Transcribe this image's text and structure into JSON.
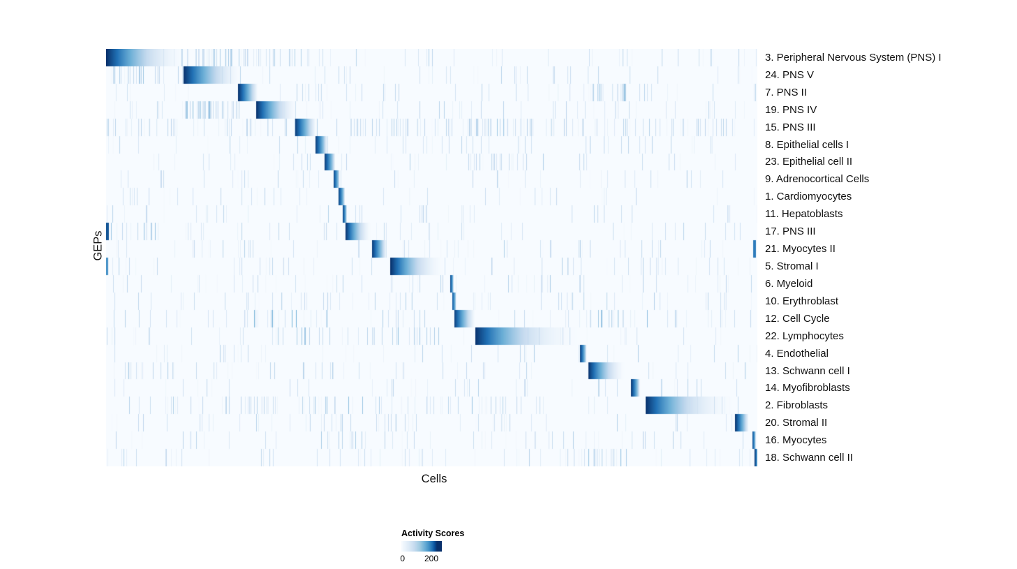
{
  "chart_data": {
    "type": "heatmap",
    "title": "",
    "xlabel": "Cells",
    "ylabel": "GEPs",
    "grid": false,
    "colormap": "Blues",
    "colormap_stops": [
      "#f7fbff",
      "#c6dbef",
      "#6baed6",
      "#2171b5",
      "#08306b"
    ],
    "legend": {
      "title": "Activity Scores",
      "tick_labels": [
        "0",
        "200"
      ],
      "position": "bottom-center"
    },
    "n_rows": 24,
    "x_axis_tick_labels": [],
    "background_noise": {
      "density": 0.05,
      "max_intensity": 0.3
    },
    "rows": [
      {
        "label": "3. Peripheral Nervous System (PNS) I",
        "block": [
          0.0,
          0.125
        ],
        "peak": 1.0,
        "fade": 2.0,
        "noise_regions": [
          [
            0.125,
            0.33,
            0.22,
            0.35
          ]
        ]
      },
      {
        "label": "24. PNS V",
        "block": [
          0.118,
          0.206
        ],
        "peak": 1.0,
        "fade": 1.6,
        "noise_regions": [
          [
            0.0,
            0.06,
            0.18,
            0.4
          ]
        ]
      },
      {
        "label": "7. PNS II",
        "block": [
          0.202,
          0.232
        ],
        "peak": 1.0,
        "fade": 1.0,
        "noise_regions": [
          [
            0.73,
            0.8,
            0.3,
            0.45
          ]
        ]
      },
      {
        "label": "19. PNS IV",
        "block": [
          0.23,
          0.292
        ],
        "peak": 1.0,
        "fade": 1.6,
        "noise_regions": [
          [
            0.12,
            0.205,
            0.28,
            0.5
          ]
        ]
      },
      {
        "label": "15. PNS III",
        "block": [
          0.29,
          0.321
        ],
        "peak": 0.95,
        "fade": 1.0,
        "noise_regions": [
          [
            0.0,
            1.0,
            0.1,
            0.3
          ],
          [
            0.55,
            0.66,
            0.18,
            0.35
          ]
        ]
      },
      {
        "label": "8. Epithelial cells I",
        "block": [
          0.321,
          0.338
        ],
        "peak": 0.95,
        "fade": 0.7,
        "noise_regions": []
      },
      {
        "label": "23. Epithelial cell II",
        "block": [
          0.335,
          0.351
        ],
        "peak": 0.95,
        "fade": 0.7,
        "noise_regions": [
          [
            0.55,
            0.64,
            0.12,
            0.3
          ]
        ]
      },
      {
        "label": "9. Adrenocortical Cells",
        "block": [
          0.349,
          0.358
        ],
        "peak": 0.9,
        "fade": 0.6,
        "noise_regions": []
      },
      {
        "label": "1. Cardiomyocytes",
        "block": [
          0.356,
          0.366
        ],
        "peak": 0.95,
        "fade": 0.6,
        "noise_regions": []
      },
      {
        "label": "11. Hepatoblasts",
        "block": [
          0.363,
          0.369
        ],
        "peak": 0.9,
        "fade": 0.5,
        "noise_regions": []
      },
      {
        "label": "17. PNS III",
        "block": [
          0.367,
          0.406
        ],
        "peak": 1.0,
        "fade": 1.6,
        "extra_blocks": [
          [
            0.0,
            0.004,
            0.85
          ]
        ],
        "noise_regions": [
          [
            0.0,
            0.15,
            0.15,
            0.4
          ]
        ]
      },
      {
        "label": "21. Myocytes II",
        "block": [
          0.408,
          0.43
        ],
        "peak": 0.95,
        "fade": 0.9,
        "extra_blocks": [
          [
            0.993,
            0.997,
            0.7
          ]
        ],
        "noise_regions": [
          [
            0.2,
            0.26,
            0.1,
            0.3
          ]
        ]
      },
      {
        "label": "5. Stromal I",
        "block": [
          0.436,
          0.52
        ],
        "peak": 1.0,
        "fade": 2.0,
        "extra_blocks": [
          [
            0.0,
            0.003,
            0.6
          ]
        ],
        "noise_regions": [
          [
            0.2,
            0.25,
            0.1,
            0.3
          ],
          [
            0.82,
            0.87,
            0.1,
            0.3
          ]
        ]
      },
      {
        "label": "6. Myeloid",
        "block": [
          0.528,
          0.533
        ],
        "peak": 0.9,
        "fade": 0.5,
        "noise_regions": []
      },
      {
        "label": "10. Erythroblast",
        "block": [
          0.531,
          0.537
        ],
        "peak": 0.85,
        "fade": 0.5,
        "noise_regions": []
      },
      {
        "label": "12. Cell Cycle",
        "block": [
          0.534,
          0.566
        ],
        "peak": 0.95,
        "fade": 1.2,
        "noise_regions": [
          [
            0.2,
            0.34,
            0.14,
            0.5
          ],
          [
            0.42,
            0.5,
            0.12,
            0.45
          ],
          [
            0.75,
            0.86,
            0.12,
            0.4
          ],
          [
            0.93,
            1.0,
            0.1,
            0.4
          ]
        ]
      },
      {
        "label": "22. Lymphocytes",
        "block": [
          0.566,
          0.735
        ],
        "peak": 1.0,
        "fade": 2.4,
        "noise_regions": [
          [
            0.25,
            0.56,
            0.08,
            0.4
          ]
        ]
      },
      {
        "label": "4. Endothelial",
        "block": [
          0.727,
          0.737
        ],
        "peak": 0.95,
        "fade": 0.6,
        "noise_regions": []
      },
      {
        "label": "13. Schwann cell I",
        "block": [
          0.74,
          0.796
        ],
        "peak": 1.0,
        "fade": 1.7,
        "noise_regions": [
          [
            0.0,
            0.12,
            0.1,
            0.35
          ]
        ]
      },
      {
        "label": "14. Myofibroblasts",
        "block": [
          0.806,
          0.819
        ],
        "peak": 0.95,
        "fade": 0.7,
        "noise_regions": []
      },
      {
        "label": "2. Fibroblasts",
        "block": [
          0.828,
          0.972
        ],
        "peak": 1.0,
        "fade": 2.4,
        "noise_regions": [
          [
            0.3,
            0.62,
            0.08,
            0.4
          ],
          [
            0.1,
            0.3,
            0.05,
            0.3
          ]
        ]
      },
      {
        "label": "20. Stromal II",
        "block": [
          0.965,
          0.986
        ],
        "peak": 1.0,
        "fade": 0.9,
        "noise_regions": [
          [
            0.3,
            0.6,
            0.06,
            0.3
          ]
        ]
      },
      {
        "label": "16. Myocytes",
        "block": [
          0.992,
          0.997
        ],
        "peak": 0.9,
        "fade": 0.5,
        "noise_regions": [
          [
            0.33,
            0.4,
            0.15,
            0.35
          ]
        ]
      },
      {
        "label": "18. Schwann cell II",
        "block": [
          0.995,
          1.0
        ],
        "peak": 1.0,
        "fade": 0.4,
        "noise_regions": [
          [
            0.74,
            0.8,
            0.25,
            0.45
          ]
        ]
      }
    ]
  }
}
